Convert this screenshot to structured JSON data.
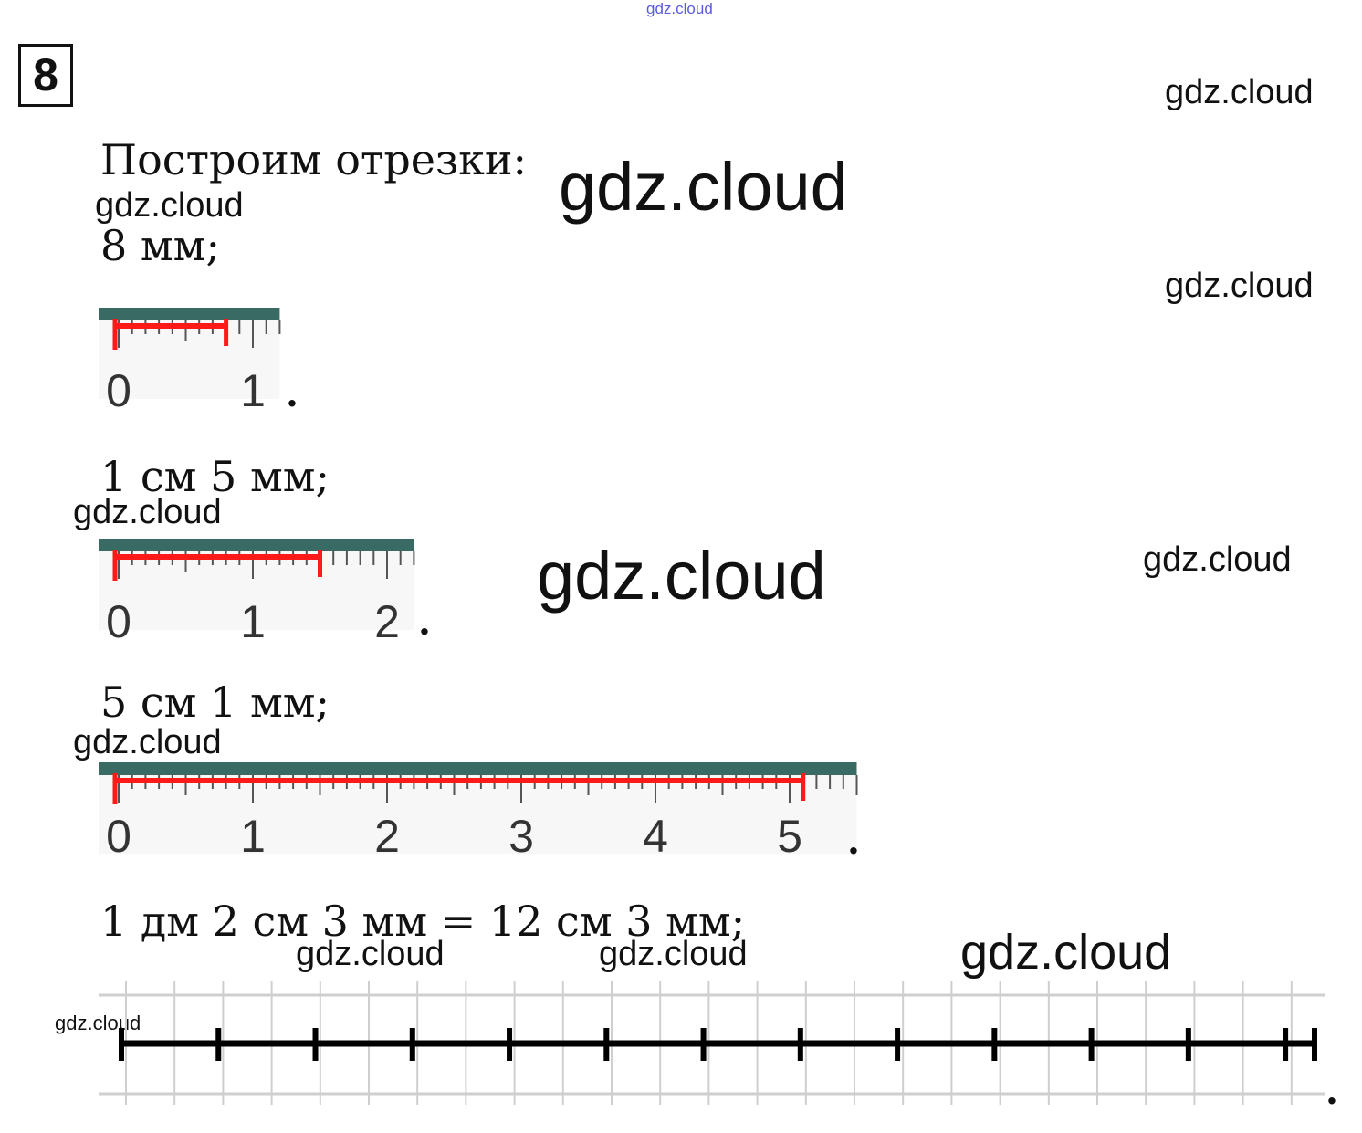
{
  "header_watermark": "gdz.cloud",
  "task_number": "8",
  "intro": "Построим отрезки:",
  "watermark": "gdz.cloud",
  "segments": [
    {
      "label": "8 мм;",
      "length_mm": 8,
      "ruler_labels": [
        "0",
        "1"
      ],
      "ruler_end_mm": 12
    },
    {
      "label": "1 см 5 мм;",
      "length_mm": 15,
      "ruler_labels": [
        "0",
        "1",
        "2"
      ],
      "ruler_end_mm": 22
    },
    {
      "label": "5 см 1 мм;",
      "length_mm": 51,
      "ruler_labels": [
        "0",
        "1",
        "2",
        "3",
        "4",
        "5"
      ],
      "ruler_end_mm": 55
    }
  ],
  "last_segment": {
    "label": "1 дм 2 см 3 мм = 12 см 3 мм;",
    "length_mm": 123,
    "end_mark": "."
  },
  "colors": {
    "segment": "#ff1a1a",
    "ruler_bg": "#e9ecea",
    "ruler_top": "#3a6a64",
    "grid": "#cfcfcf"
  }
}
